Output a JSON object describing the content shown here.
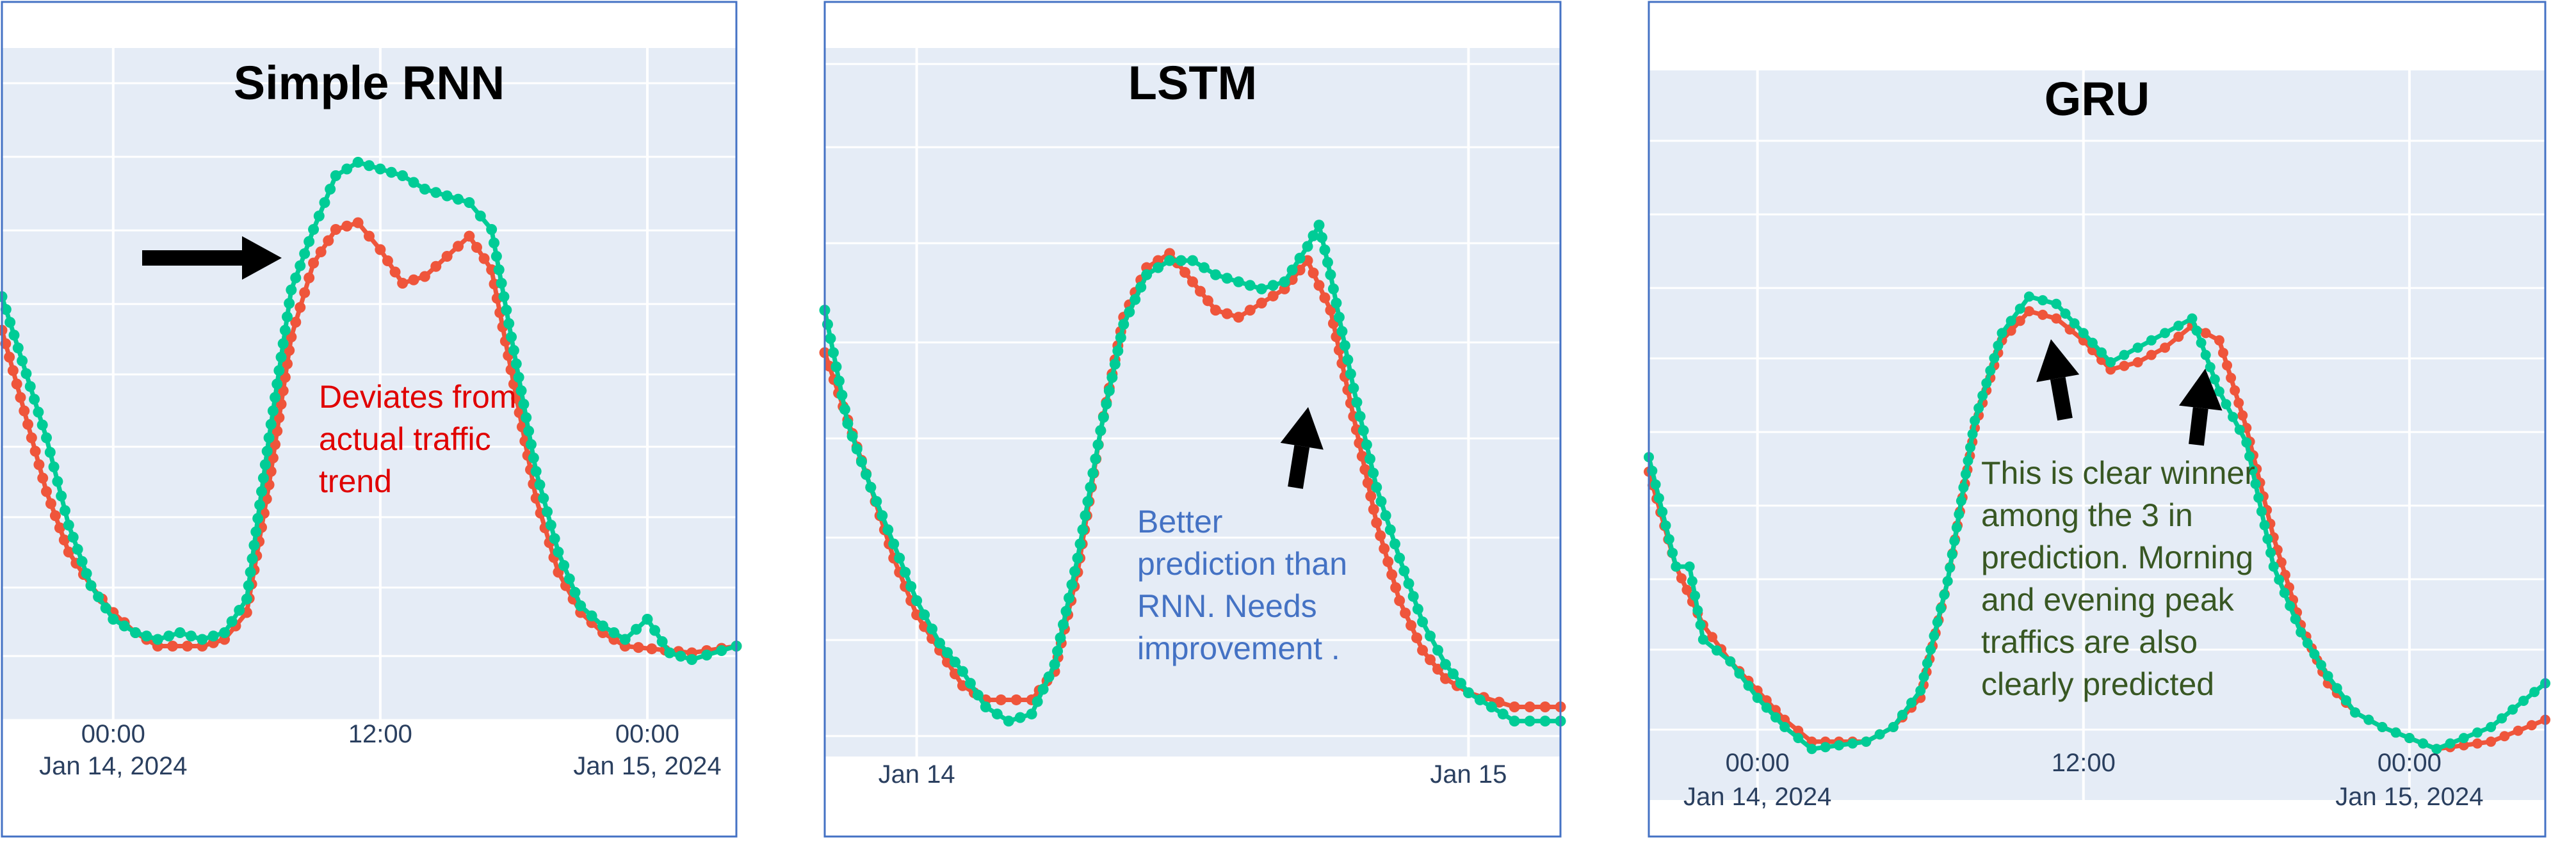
{
  "colors": {
    "actual": "#EF553B",
    "predicted": "#00CC96",
    "plot_bg": "#E5ECF6",
    "grid": "#FFFFFF",
    "frame": "#4472C4",
    "red_note": "#E00000",
    "blue_note": "#4472C4",
    "green_note": "#385723",
    "arrow": "#000000"
  },
  "chart_data": [
    {
      "type": "line",
      "title": "Simple RNN",
      "xlabel": "",
      "ylabel": "",
      "x_start": "2024-01-13 19:00",
      "x_end": "2024-01-15 04:00",
      "ylim": [
        0,
        100
      ],
      "grid": true,
      "x_ticks": [
        {
          "x": "2024-01-14 00:00",
          "label": "00:00",
          "sublabel": "Jan 14, 2024"
        },
        {
          "x": "2024-01-14 12:00",
          "label": "12:00",
          "sublabel": ""
        },
        {
          "x": "2024-01-15 00:00",
          "label": "00:00",
          "sublabel": "Jan 15, 2024"
        }
      ],
      "series": [
        {
          "role": "actual",
          "points": [
            [
              "2024-01-13 19:00",
              58
            ],
            [
              "2024-01-13 21:00",
              34
            ],
            [
              "2024-01-13 22:00",
              25
            ],
            [
              "2024-01-13 23:00",
              20
            ],
            [
              "2024-01-14 00:00",
              16
            ],
            [
              "2024-01-14 01:00",
              13
            ],
            [
              "2024-01-14 02:00",
              11
            ],
            [
              "2024-01-14 04:00",
              11
            ],
            [
              "2024-01-14 05:00",
              12
            ],
            [
              "2024-01-14 06:00",
              16
            ],
            [
              "2024-01-14 07:00",
              35
            ],
            [
              "2024-01-14 08:00",
              57
            ],
            [
              "2024-01-14 09:00",
              68
            ],
            [
              "2024-01-14 10:00",
              73
            ],
            [
              "2024-01-14 11:00",
              74
            ],
            [
              "2024-01-14 12:00",
              70
            ],
            [
              "2024-01-14 13:00",
              65
            ],
            [
              "2024-01-14 14:00",
              66
            ],
            [
              "2024-01-14 15:00",
              69
            ],
            [
              "2024-01-14 16:00",
              72
            ],
            [
              "2024-01-14 17:00",
              67
            ],
            [
              "2024-01-14 18:00",
              50
            ],
            [
              "2024-01-14 19:00",
              33
            ],
            [
              "2024-01-14 20:00",
              22
            ],
            [
              "2024-01-14 21:00",
              16
            ],
            [
              "2024-01-14 22:00",
              13
            ],
            [
              "2024-01-14 23:00",
              11
            ],
            [
              "2024-01-15 02:00",
              10
            ],
            [
              "2024-01-15 04:00",
              11
            ]
          ]
        },
        {
          "role": "predicted",
          "points": [
            [
              "2024-01-13 19:00",
              63
            ],
            [
              "2024-01-13 21:00",
              42
            ],
            [
              "2024-01-13 22:00",
              29
            ],
            [
              "2024-01-13 23:00",
              20
            ],
            [
              "2024-01-14 00:00",
              15
            ],
            [
              "2024-01-14 01:00",
              13
            ],
            [
              "2024-01-14 02:00",
              12
            ],
            [
              "2024-01-14 03:00",
              13
            ],
            [
              "2024-01-14 04:00",
              12
            ],
            [
              "2024-01-14 05:00",
              13
            ],
            [
              "2024-01-14 06:00",
              18
            ],
            [
              "2024-01-14 07:00",
              42
            ],
            [
              "2024-01-14 08:00",
              64
            ],
            [
              "2024-01-14 09:00",
              73
            ],
            [
              "2024-01-14 10:00",
              81
            ],
            [
              "2024-01-14 11:00",
              83
            ],
            [
              "2024-01-14 12:00",
              82
            ],
            [
              "2024-01-14 13:00",
              81
            ],
            [
              "2024-01-14 14:00",
              79
            ],
            [
              "2024-01-14 15:00",
              78
            ],
            [
              "2024-01-14 16:00",
              77
            ],
            [
              "2024-01-14 17:00",
              73
            ],
            [
              "2024-01-14 18:00",
              55
            ],
            [
              "2024-01-14 19:00",
              37
            ],
            [
              "2024-01-14 20:00",
              25
            ],
            [
              "2024-01-14 21:00",
              17
            ],
            [
              "2024-01-14 22:00",
              14
            ],
            [
              "2024-01-14 23:00",
              12
            ],
            [
              "2024-01-15 00:00",
              15
            ],
            [
              "2024-01-15 01:00",
              10
            ],
            [
              "2024-01-15 02:00",
              9
            ],
            [
              "2024-01-15 04:00",
              11
            ]
          ]
        }
      ]
    },
    {
      "type": "line",
      "title": "LSTM",
      "xlabel": "",
      "ylabel": "",
      "x_start": "2024-01-13 20:00",
      "x_end": "2024-01-15 04:00",
      "ylim": [
        0,
        100
      ],
      "grid": true,
      "x_ticks": [
        {
          "x": "2024-01-14 00:00",
          "label": "Jan 14",
          "sublabel": ""
        },
        {
          "x": "2024-01-15 00:00",
          "label": "Jan 15",
          "sublabel": ""
        }
      ],
      "series": [
        {
          "role": "actual",
          "points": [
            [
              "2024-01-13 20:00",
              57
            ],
            [
              "2024-01-13 22:00",
              38
            ],
            [
              "2024-01-13 23:00",
              28
            ],
            [
              "2024-01-14 00:00",
              20
            ],
            [
              "2024-01-14 01:00",
              15
            ],
            [
              "2024-01-14 02:00",
              10
            ],
            [
              "2024-01-14 03:00",
              8
            ],
            [
              "2024-01-14 05:00",
              8
            ],
            [
              "2024-01-14 06:00",
              12
            ],
            [
              "2024-01-14 07:00",
              26
            ],
            [
              "2024-01-14 08:00",
              46
            ],
            [
              "2024-01-14 09:00",
              62
            ],
            [
              "2024-01-14 10:00",
              69
            ],
            [
              "2024-01-14 11:00",
              71
            ],
            [
              "2024-01-14 12:00",
              67
            ],
            [
              "2024-01-14 13:00",
              63
            ],
            [
              "2024-01-14 14:00",
              62
            ],
            [
              "2024-01-14 15:00",
              64
            ],
            [
              "2024-01-14 16:00",
              66
            ],
            [
              "2024-01-14 17:00",
              70
            ],
            [
              "2024-01-14 18:00",
              63
            ],
            [
              "2024-01-14 19:00",
              48
            ],
            [
              "2024-01-14 20:00",
              33
            ],
            [
              "2024-01-14 21:00",
              22
            ],
            [
              "2024-01-14 22:00",
              15
            ],
            [
              "2024-01-14 23:00",
              11
            ],
            [
              "2024-01-15 00:00",
              9
            ],
            [
              "2024-01-15 02:00",
              7
            ],
            [
              "2024-01-15 04:00",
              7
            ]
          ]
        },
        {
          "role": "predicted",
          "points": [
            [
              "2024-01-13 20:00",
              63
            ],
            [
              "2024-01-13 21:00",
              47
            ],
            [
              "2024-01-13 22:00",
              38
            ],
            [
              "2024-01-13 23:00",
              30
            ],
            [
              "2024-01-14 00:00",
              22
            ],
            [
              "2024-01-14 01:00",
              16
            ],
            [
              "2024-01-14 02:00",
              12
            ],
            [
              "2024-01-14 03:00",
              7
            ],
            [
              "2024-01-14 04:00",
              5
            ],
            [
              "2024-01-14 05:00",
              6
            ],
            [
              "2024-01-14 06:00",
              13
            ],
            [
              "2024-01-14 07:00",
              28
            ],
            [
              "2024-01-14 08:00",
              46
            ],
            [
              "2024-01-14 09:00",
              61
            ],
            [
              "2024-01-14 10:00",
              68
            ],
            [
              "2024-01-14 11:00",
              70
            ],
            [
              "2024-01-14 12:00",
              70
            ],
            [
              "2024-01-14 13:00",
              68
            ],
            [
              "2024-01-14 14:00",
              67
            ],
            [
              "2024-01-14 15:00",
              66
            ],
            [
              "2024-01-14 16:00",
              67
            ],
            [
              "2024-01-14 17:00",
              72
            ],
            [
              "2024-01-14 17:30",
              75
            ],
            [
              "2024-01-14 18:00",
              68
            ],
            [
              "2024-01-14 19:00",
              52
            ],
            [
              "2024-01-14 20:00",
              38
            ],
            [
              "2024-01-14 21:00",
              28
            ],
            [
              "2024-01-14 22:00",
              19
            ],
            [
              "2024-01-14 23:00",
              13
            ],
            [
              "2024-01-15 00:00",
              9
            ],
            [
              "2024-01-15 02:00",
              5
            ],
            [
              "2024-01-15 04:00",
              5
            ]
          ]
        }
      ]
    },
    {
      "type": "line",
      "title": "GRU",
      "xlabel": "",
      "ylabel": "",
      "x_start": "2024-01-13 20:00",
      "x_end": "2024-01-15 05:00",
      "ylim": [
        0,
        100
      ],
      "grid": true,
      "x_ticks": [
        {
          "x": "2024-01-14 00:00",
          "label": "00:00",
          "sublabel": "Jan 14, 2024"
        },
        {
          "x": "2024-01-14 12:00",
          "label": "12:00",
          "sublabel": ""
        },
        {
          "x": "2024-01-15 00:00",
          "label": "00:00",
          "sublabel": "Jan 15, 2024"
        }
      ],
      "series": [
        {
          "role": "actual",
          "points": [
            [
              "2024-01-13 20:00",
              45
            ],
            [
              "2024-01-13 21:00",
              32
            ],
            [
              "2024-01-13 22:00",
              24
            ],
            [
              "2024-01-13 23:00",
              19
            ],
            [
              "2024-01-14 00:00",
              15
            ],
            [
              "2024-01-14 01:00",
              11
            ],
            [
              "2024-01-14 02:00",
              8
            ],
            [
              "2024-01-14 04:00",
              8
            ],
            [
              "2024-01-14 05:00",
              10
            ],
            [
              "2024-01-14 06:00",
              14
            ],
            [
              "2024-01-14 07:00",
              30
            ],
            [
              "2024-01-14 08:00",
              51
            ],
            [
              "2024-01-14 09:00",
              63
            ],
            [
              "2024-01-14 10:00",
              67
            ],
            [
              "2024-01-14 11:00",
              66
            ],
            [
              "2024-01-14 12:00",
              63
            ],
            [
              "2024-01-14 13:00",
              59
            ],
            [
              "2024-01-14 14:00",
              60
            ],
            [
              "2024-01-14 15:00",
              62
            ],
            [
              "2024-01-14 16:00",
              65
            ],
            [
              "2024-01-14 17:00",
              63
            ],
            [
              "2024-01-14 18:00",
              51
            ],
            [
              "2024-01-14 19:00",
              36
            ],
            [
              "2024-01-14 20:00",
              24
            ],
            [
              "2024-01-14 21:00",
              16
            ],
            [
              "2024-01-14 22:00",
              12
            ],
            [
              "2024-01-14 23:00",
              10
            ],
            [
              "2024-01-15 01:00",
              7
            ],
            [
              "2024-01-15 03:00",
              8
            ],
            [
              "2024-01-15 05:00",
              11
            ]
          ]
        },
        {
          "role": "predicted",
          "points": [
            [
              "2024-01-13 20:00",
              47
            ],
            [
              "2024-01-13 21:00",
              32
            ],
            [
              "2024-01-13 21:30",
              32
            ],
            [
              "2024-01-13 22:00",
              22
            ],
            [
              "2024-01-13 23:00",
              19
            ],
            [
              "2024-01-14 00:00",
              14
            ],
            [
              "2024-01-14 01:00",
              10
            ],
            [
              "2024-01-14 02:00",
              7
            ],
            [
              "2024-01-14 04:00",
              8
            ],
            [
              "2024-01-14 05:00",
              10
            ],
            [
              "2024-01-14 06:00",
              15
            ],
            [
              "2024-01-14 07:00",
              30
            ],
            [
              "2024-01-14 08:00",
              52
            ],
            [
              "2024-01-14 09:00",
              64
            ],
            [
              "2024-01-14 10:00",
              69
            ],
            [
              "2024-01-14 11:00",
              68
            ],
            [
              "2024-01-14 12:00",
              64
            ],
            [
              "2024-01-14 13:00",
              60
            ],
            [
              "2024-01-14 14:00",
              62
            ],
            [
              "2024-01-14 15:00",
              64
            ],
            [
              "2024-01-14 16:00",
              66
            ],
            [
              "2024-01-14 17:00",
              56
            ],
            [
              "2024-01-14 18:00",
              49
            ],
            [
              "2024-01-14 19:00",
              32
            ],
            [
              "2024-01-14 20:00",
              23
            ],
            [
              "2024-01-14 21:00",
              17
            ],
            [
              "2024-01-14 22:00",
              12
            ],
            [
              "2024-01-14 23:00",
              10
            ],
            [
              "2024-01-15 01:00",
              7
            ],
            [
              "2024-01-15 03:00",
              10
            ],
            [
              "2024-01-15 05:00",
              16
            ]
          ]
        }
      ]
    }
  ],
  "annotations": {
    "rnn_note": [
      "Deviates from",
      "actual traffic",
      "trend"
    ],
    "lstm_note": [
      "Better",
      "prediction than",
      "RNN. Needs",
      "improvement ."
    ],
    "gru_note": [
      "This is clear winner",
      "among the 3 in",
      "prediction. Morning",
      "and evening peak",
      "traffics are also",
      "clearly predicted"
    ]
  }
}
